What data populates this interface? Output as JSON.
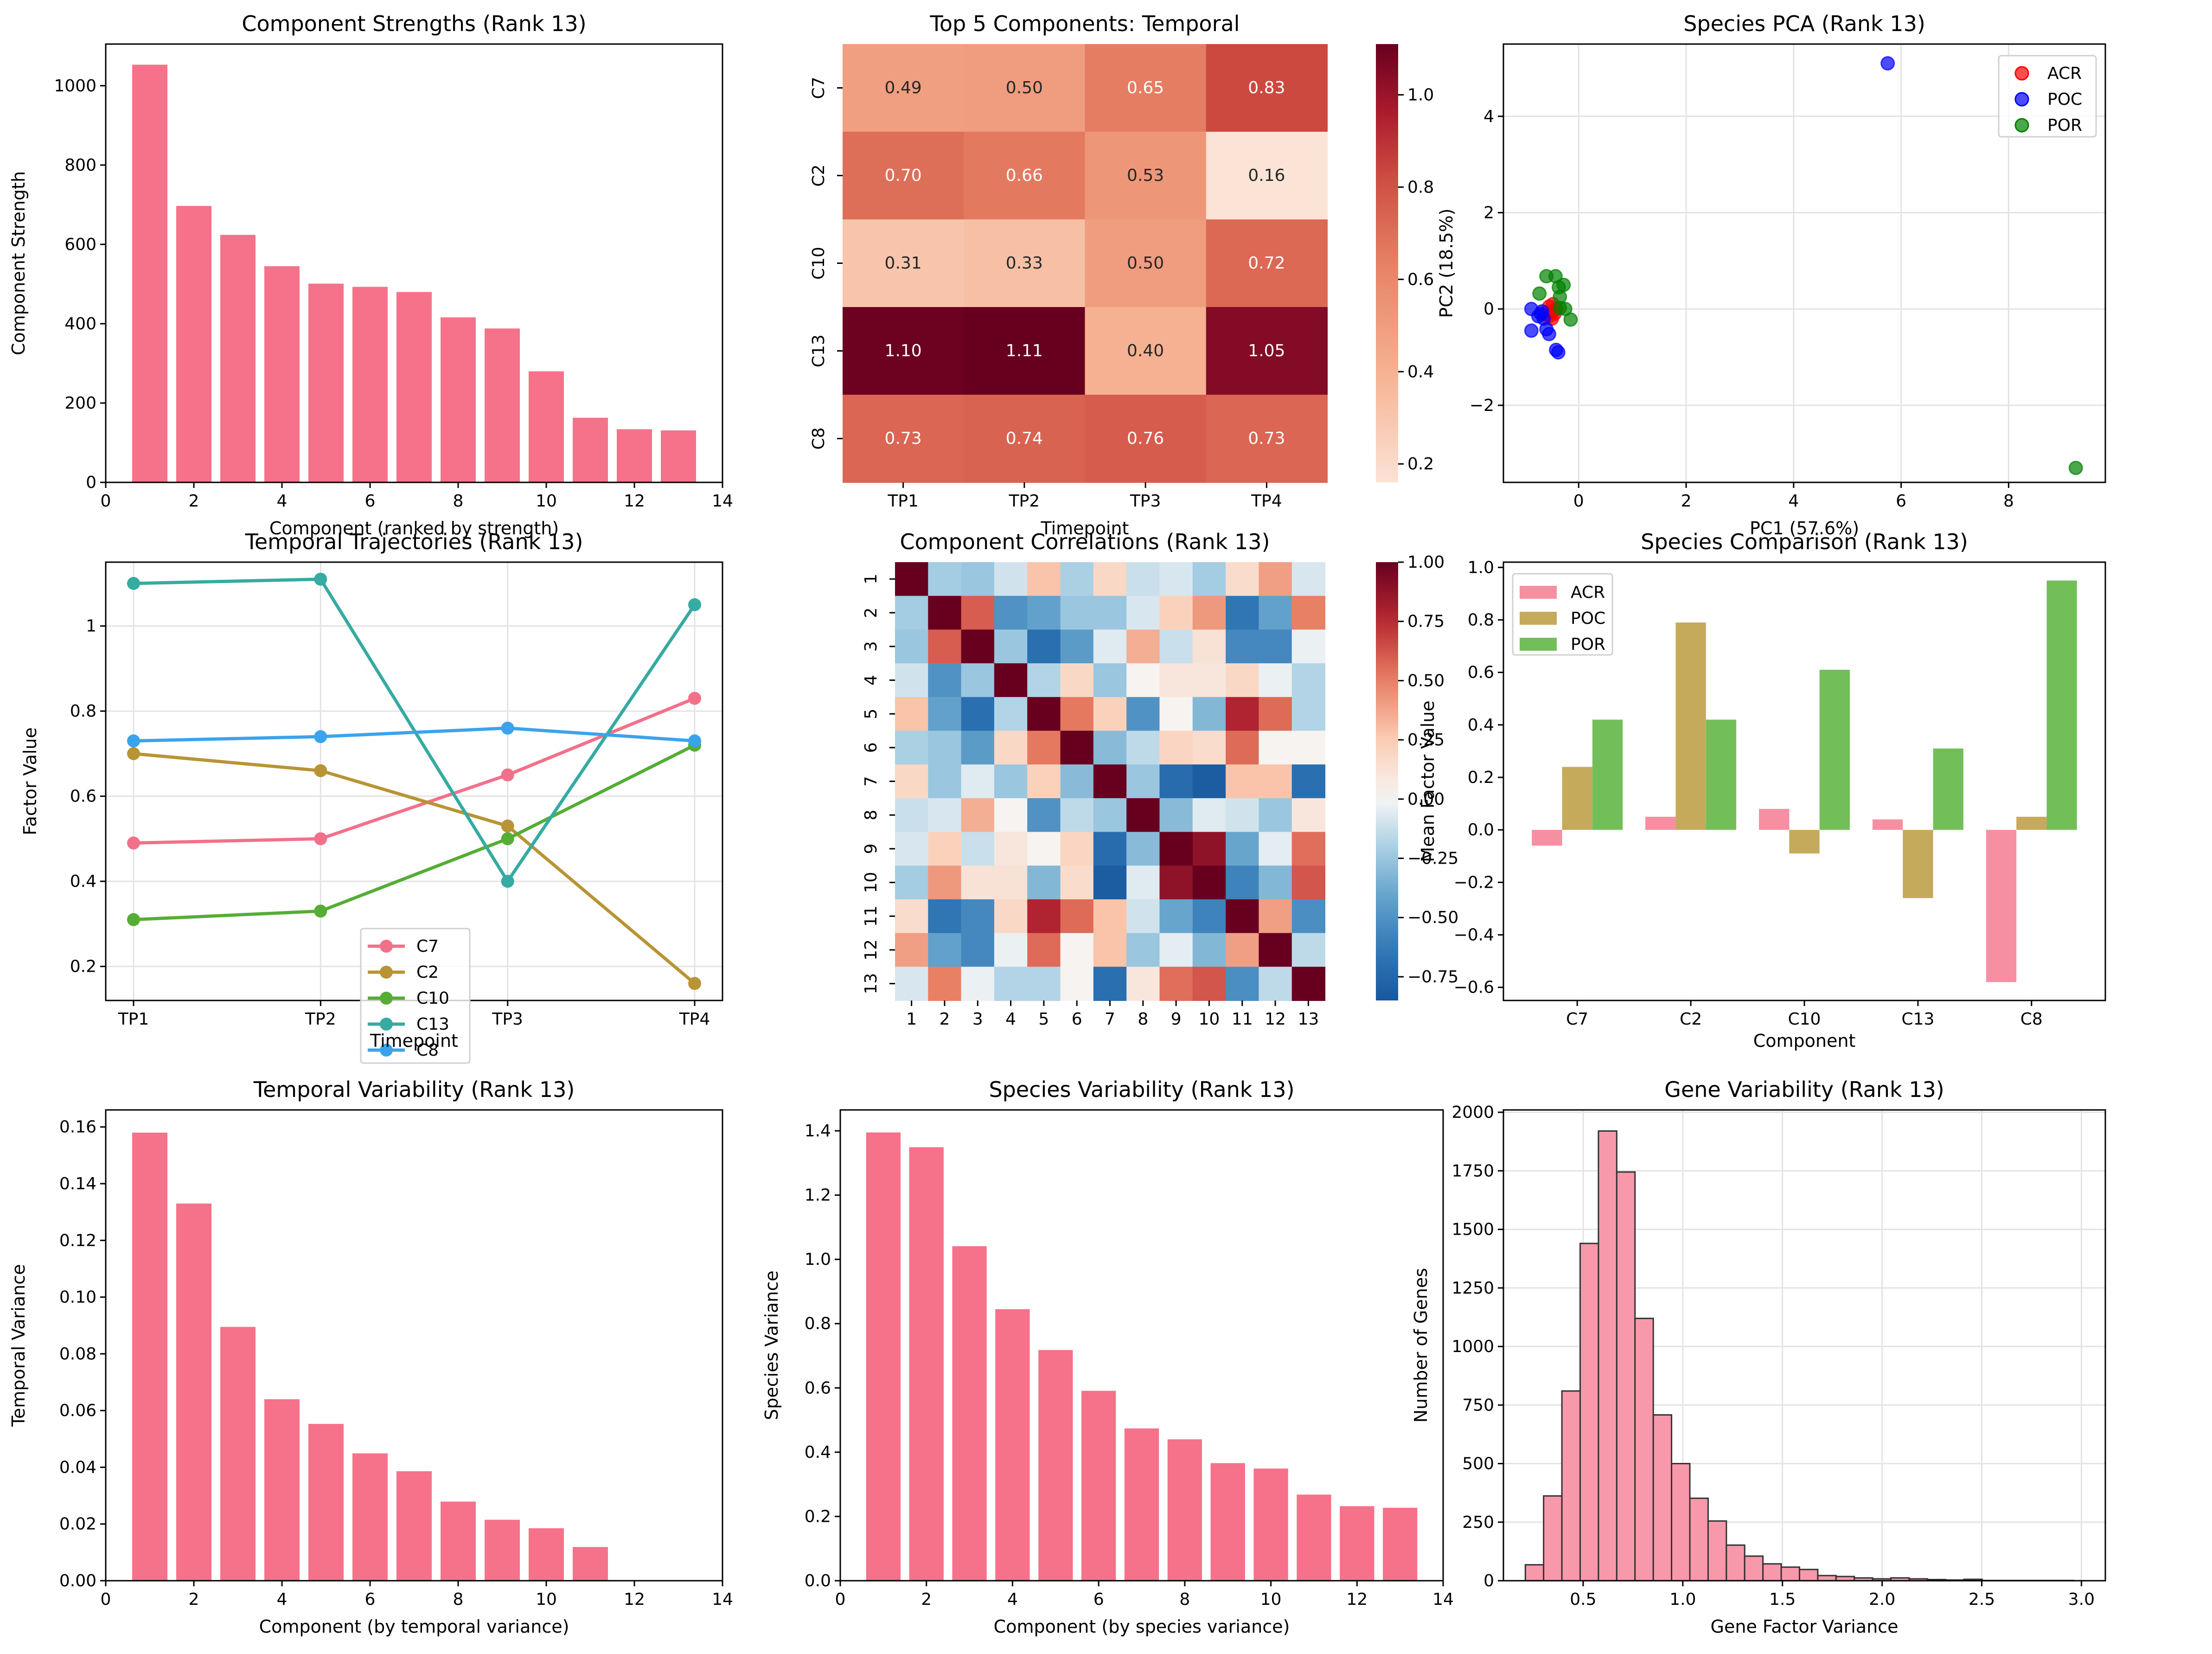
{
  "figure": {
    "colors": {
      "bar": "#f5728a",
      "grid": "#e0e0e0",
      "hist_fill": "#f799ab",
      "hist_edge": "#333333"
    }
  },
  "chart_data": [
    {
      "id": "strengths",
      "type": "bar",
      "title": "Component Strengths (Rank 13)",
      "xlabel": "Component (ranked by strength)",
      "ylabel": "Component Strength",
      "x": [
        1,
        2,
        3,
        4,
        5,
        6,
        7,
        8,
        9,
        10,
        11,
        12,
        13
      ],
      "values": [
        1053,
        697,
        624,
        545,
        501,
        493,
        480,
        416,
        388,
        280,
        163,
        134,
        131
      ],
      "xlim": [
        0,
        14
      ],
      "ylim": [
        0,
        1105
      ],
      "xticks": [
        0,
        2,
        4,
        6,
        8,
        10,
        12,
        14
      ],
      "yticks": [
        0,
        200,
        400,
        600,
        800,
        1000
      ],
      "grid": false,
      "color": "#f5728a"
    },
    {
      "id": "temporal_heatmap",
      "type": "heatmap",
      "title": "Top 5 Components: Temporal",
      "xlabel": "Timepoint",
      "ylabel": "",
      "columns": [
        "TP1",
        "TP2",
        "TP3",
        "TP4"
      ],
      "rows": [
        "C7",
        "C2",
        "C10",
        "C13",
        "C8"
      ],
      "values": [
        [
          0.49,
          0.5,
          0.65,
          0.83
        ],
        [
          0.7,
          0.66,
          0.53,
          0.16
        ],
        [
          0.31,
          0.33,
          0.5,
          0.72
        ],
        [
          1.1,
          1.11,
          0.4,
          1.05
        ],
        [
          0.73,
          0.74,
          0.76,
          0.73
        ]
      ],
      "colormap": "Reds (light to dark)",
      "vmin": 0.16,
      "vmax": 1.11,
      "colorbar_ticks": [
        0.2,
        0.4,
        0.6,
        0.8,
        1.0
      ],
      "annotated": true
    },
    {
      "id": "species_pca",
      "type": "scatter",
      "title": "Species PCA (Rank 13)",
      "xlabel": "PC1 (57.6%)",
      "ylabel": "PC2 (18.5%)",
      "xlim": [
        -1.4,
        9.8
      ],
      "ylim": [
        -3.6,
        5.5
      ],
      "xticks": [
        0,
        2,
        4,
        6,
        8
      ],
      "yticks": [
        -2,
        0,
        2,
        4
      ],
      "grid": true,
      "legend": "top-right",
      "series": [
        {
          "name": "ACR",
          "color": "#ff0000",
          "points": [
            [
              -0.55,
              0.05
            ],
            [
              -0.5,
              -0.05
            ],
            [
              -0.45,
              -0.1
            ],
            [
              -0.55,
              -0.15
            ],
            [
              -0.5,
              -0.2
            ],
            [
              -0.6,
              -0.1
            ],
            [
              -0.42,
              0.0
            ],
            [
              -0.48,
              0.1
            ]
          ]
        },
        {
          "name": "POC",
          "color": "#0000ff",
          "points": [
            [
              5.75,
              5.1
            ],
            [
              -0.88,
              0.0
            ],
            [
              -0.75,
              -0.15
            ],
            [
              -0.68,
              -0.05
            ],
            [
              -0.65,
              -0.2
            ],
            [
              -0.88,
              -0.45
            ],
            [
              -0.6,
              -0.42
            ],
            [
              -0.55,
              -0.52
            ],
            [
              -0.42,
              -0.85
            ],
            [
              -0.38,
              -0.9
            ],
            [
              -0.7,
              -0.1
            ]
          ]
        },
        {
          "name": "POR",
          "color": "#008000",
          "points": [
            [
              9.25,
              -3.3
            ],
            [
              -0.6,
              0.68
            ],
            [
              -0.43,
              0.68
            ],
            [
              -0.28,
              0.5
            ],
            [
              -0.37,
              0.45
            ],
            [
              -0.73,
              0.32
            ],
            [
              -0.35,
              0.25
            ],
            [
              -0.35,
              0.02
            ],
            [
              -0.25,
              0.0
            ],
            [
              -0.15,
              -0.22
            ]
          ]
        }
      ]
    },
    {
      "id": "temporal_trajectories",
      "type": "line",
      "title": "Temporal Trajectories (Rank 13)",
      "xlabel": "Timepoint",
      "ylabel": "Factor Value",
      "categories": [
        "TP1",
        "TP2",
        "TP3",
        "TP4"
      ],
      "ylim": [
        0.12,
        1.15
      ],
      "yticks": [
        0.2,
        0.4,
        0.6,
        0.8,
        1.0
      ],
      "grid": true,
      "legend": "lower-center",
      "series": [
        {
          "name": "C7",
          "color": "#f3708a",
          "values": [
            0.49,
            0.5,
            0.65,
            0.83
          ]
        },
        {
          "name": "C2",
          "color": "#b89434",
          "values": [
            0.7,
            0.66,
            0.53,
            0.16
          ]
        },
        {
          "name": "C10",
          "color": "#55ad35",
          "values": [
            0.31,
            0.33,
            0.5,
            0.72
          ]
        },
        {
          "name": "C13",
          "color": "#35aba2",
          "values": [
            1.1,
            1.11,
            0.4,
            1.05
          ]
        },
        {
          "name": "C8",
          "color": "#3ba3ec",
          "values": [
            0.73,
            0.74,
            0.76,
            0.73
          ]
        }
      ]
    },
    {
      "id": "component_correlations",
      "type": "heatmap",
      "title": "Component Correlations (Rank 13)",
      "xlabel": "",
      "ylabel": "",
      "labels": [
        "1",
        "2",
        "3",
        "4",
        "5",
        "6",
        "7",
        "8",
        "9",
        "10",
        "11",
        "12",
        "13"
      ],
      "colormap": "RdBu_r",
      "vmin": -0.85,
      "vmax": 1.0,
      "colorbar_ticks": [
        -0.75,
        -0.5,
        -0.25,
        0.0,
        0.25,
        0.5,
        0.75,
        1.0
      ],
      "colorbar_tick_labels": [
        "−0.75",
        "−0.50",
        "−0.25",
        "0.00",
        "0.25",
        "0.50",
        "0.75",
        "1.00"
      ],
      "values": [
        [
          1.0,
          -0.22,
          -0.25,
          -0.1,
          0.28,
          -0.2,
          0.18,
          -0.12,
          -0.08,
          -0.22,
          0.16,
          0.4,
          -0.08
        ],
        [
          -0.22,
          1.0,
          0.6,
          -0.5,
          -0.42,
          -0.25,
          -0.25,
          -0.08,
          0.22,
          0.42,
          -0.65,
          -0.42,
          0.5
        ],
        [
          -0.25,
          0.6,
          1.0,
          -0.25,
          -0.7,
          -0.45,
          -0.06,
          0.35,
          -0.12,
          0.12,
          -0.55,
          -0.55,
          -0.03
        ],
        [
          -0.1,
          -0.5,
          -0.25,
          1.0,
          -0.18,
          0.18,
          -0.25,
          0.02,
          0.1,
          0.1,
          0.18,
          -0.03,
          -0.18
        ],
        [
          0.28,
          -0.42,
          -0.7,
          -0.18,
          1.0,
          0.52,
          0.22,
          -0.5,
          0.02,
          -0.32,
          0.78,
          0.56,
          -0.18
        ],
        [
          -0.2,
          -0.25,
          -0.45,
          0.18,
          0.52,
          1.0,
          -0.3,
          -0.15,
          0.2,
          0.16,
          0.56,
          0.02,
          0.02
        ],
        [
          0.18,
          -0.25,
          -0.06,
          -0.25,
          0.22,
          -0.3,
          1.0,
          -0.25,
          -0.72,
          -0.82,
          0.28,
          0.28,
          -0.7
        ],
        [
          -0.12,
          -0.08,
          0.35,
          0.02,
          -0.5,
          -0.15,
          -0.25,
          1.0,
          -0.3,
          -0.06,
          -0.1,
          -0.25,
          0.1
        ],
        [
          -0.08,
          0.22,
          -0.12,
          0.1,
          0.02,
          0.2,
          -0.72,
          -0.3,
          1.0,
          0.88,
          -0.4,
          -0.05,
          0.55
        ],
        [
          -0.22,
          0.42,
          0.12,
          0.12,
          -0.32,
          0.16,
          -0.82,
          -0.06,
          0.88,
          1.0,
          -0.58,
          -0.32,
          0.62
        ],
        [
          0.16,
          -0.65,
          -0.55,
          0.18,
          0.78,
          0.56,
          0.28,
          -0.1,
          -0.4,
          -0.58,
          1.0,
          0.4,
          -0.52
        ],
        [
          0.4,
          -0.42,
          -0.55,
          -0.03,
          0.56,
          0.02,
          0.28,
          -0.25,
          -0.05,
          -0.32,
          0.4,
          1.0,
          -0.15
        ],
        [
          -0.08,
          0.5,
          -0.03,
          -0.18,
          -0.18,
          0.02,
          -0.7,
          0.1,
          0.55,
          0.62,
          -0.52,
          -0.15,
          1.0
        ]
      ]
    },
    {
      "id": "species_comparison",
      "type": "bar",
      "title": "Species Comparison (Rank 13)",
      "xlabel": "Component",
      "ylabel": "Mean Factor Value",
      "categories": [
        "C7",
        "C2",
        "C10",
        "C13",
        "C8"
      ],
      "ylim": [
        -0.65,
        1.02
      ],
      "yticks": [
        -0.6,
        -0.4,
        -0.2,
        0.0,
        0.2,
        0.4,
        0.6,
        0.8,
        1.0
      ],
      "ytick_labels": [
        "−0.6",
        "−0.4",
        "−0.2",
        "0.0",
        "0.2",
        "0.4",
        "0.6",
        "0.8",
        "1.0"
      ],
      "legend": "top-left",
      "series": [
        {
          "name": "ACR",
          "color": "#f78fa2",
          "values": [
            -0.06,
            0.05,
            0.08,
            0.04,
            -0.58
          ]
        },
        {
          "name": "POC",
          "color": "#c6aa5b",
          "values": [
            0.24,
            0.79,
            -0.09,
            -0.26,
            0.05
          ]
        },
        {
          "name": "POR",
          "color": "#72bf5a",
          "values": [
            0.42,
            0.42,
            0.61,
            0.31,
            0.95
          ]
        }
      ]
    },
    {
      "id": "temporal_variability",
      "type": "bar",
      "title": "Temporal Variability (Rank 13)",
      "xlabel": "Component (by temporal variance)",
      "ylabel": "Temporal Variance",
      "x": [
        1,
        2,
        3,
        4,
        5,
        6,
        7,
        8,
        9,
        10,
        11,
        12,
        13
      ],
      "values": [
        0.158,
        0.133,
        0.0895,
        0.064,
        0.0553,
        0.0449,
        0.0386,
        0.0279,
        0.0215,
        0.0185,
        0.0119,
        0.0,
        0.0
      ],
      "xlim": [
        0,
        14
      ],
      "ylim": [
        0,
        0.166
      ],
      "xticks": [
        0,
        2,
        4,
        6,
        8,
        10,
        12,
        14
      ],
      "yticks": [
        0.0,
        0.02,
        0.04,
        0.06,
        0.08,
        0.1,
        0.12,
        0.14,
        0.16
      ],
      "ytick_labels": [
        "0.00",
        "0.02",
        "0.04",
        "0.06",
        "0.08",
        "0.10",
        "0.12",
        "0.14",
        "0.16"
      ],
      "grid": false,
      "color": "#f5728a"
    },
    {
      "id": "species_variability",
      "type": "bar",
      "title": "Species Variability (Rank 13)",
      "xlabel": "Component (by species variance)",
      "ylabel": "Species Variance",
      "x": [
        1,
        2,
        3,
        4,
        5,
        6,
        7,
        8,
        9,
        10,
        11,
        12,
        13
      ],
      "values": [
        1.395,
        1.349,
        1.041,
        0.845,
        0.718,
        0.591,
        0.474,
        0.44,
        0.366,
        0.349,
        0.268,
        0.232,
        0.227
      ],
      "xlim": [
        0,
        14
      ],
      "ylim": [
        0,
        1.465
      ],
      "xticks": [
        0,
        2,
        4,
        6,
        8,
        10,
        12,
        14
      ],
      "yticks": [
        0.0,
        0.2,
        0.4,
        0.6,
        0.8,
        1.0,
        1.2,
        1.4
      ],
      "ytick_labels": [
        "0.0",
        "0.2",
        "0.4",
        "0.6",
        "0.8",
        "1.0",
        "1.2",
        "1.4"
      ],
      "grid": false,
      "color": "#f5728a"
    },
    {
      "id": "gene_variability",
      "type": "bar",
      "subtype": "histogram",
      "title": "Gene Variability (Rank 13)",
      "xlabel": "Gene Factor Variance",
      "ylabel": "Number of Genes",
      "bin_start": 0.21,
      "bin_width": 0.0917,
      "counts": [
        68,
        362,
        810,
        1440,
        1920,
        1745,
        1120,
        708,
        500,
        352,
        255,
        152,
        105,
        72,
        58,
        48,
        22,
        18,
        12,
        8,
        12,
        8,
        5,
        3,
        6,
        1,
        1,
        1,
        1,
        1
      ],
      "xlim": [
        0.1,
        3.12
      ],
      "ylim": [
        0,
        2010
      ],
      "xticks": [
        0.5,
        1.0,
        1.5,
        2.0,
        2.5,
        3.0
      ],
      "xtick_labels": [
        "0.5",
        "1.0",
        "1.5",
        "2.0",
        "2.5",
        "3.0"
      ],
      "yticks": [
        0,
        250,
        500,
        750,
        1000,
        1250,
        1500,
        1750,
        2000
      ],
      "grid": true,
      "fill": "#f799ab",
      "edge": "#333333"
    }
  ]
}
